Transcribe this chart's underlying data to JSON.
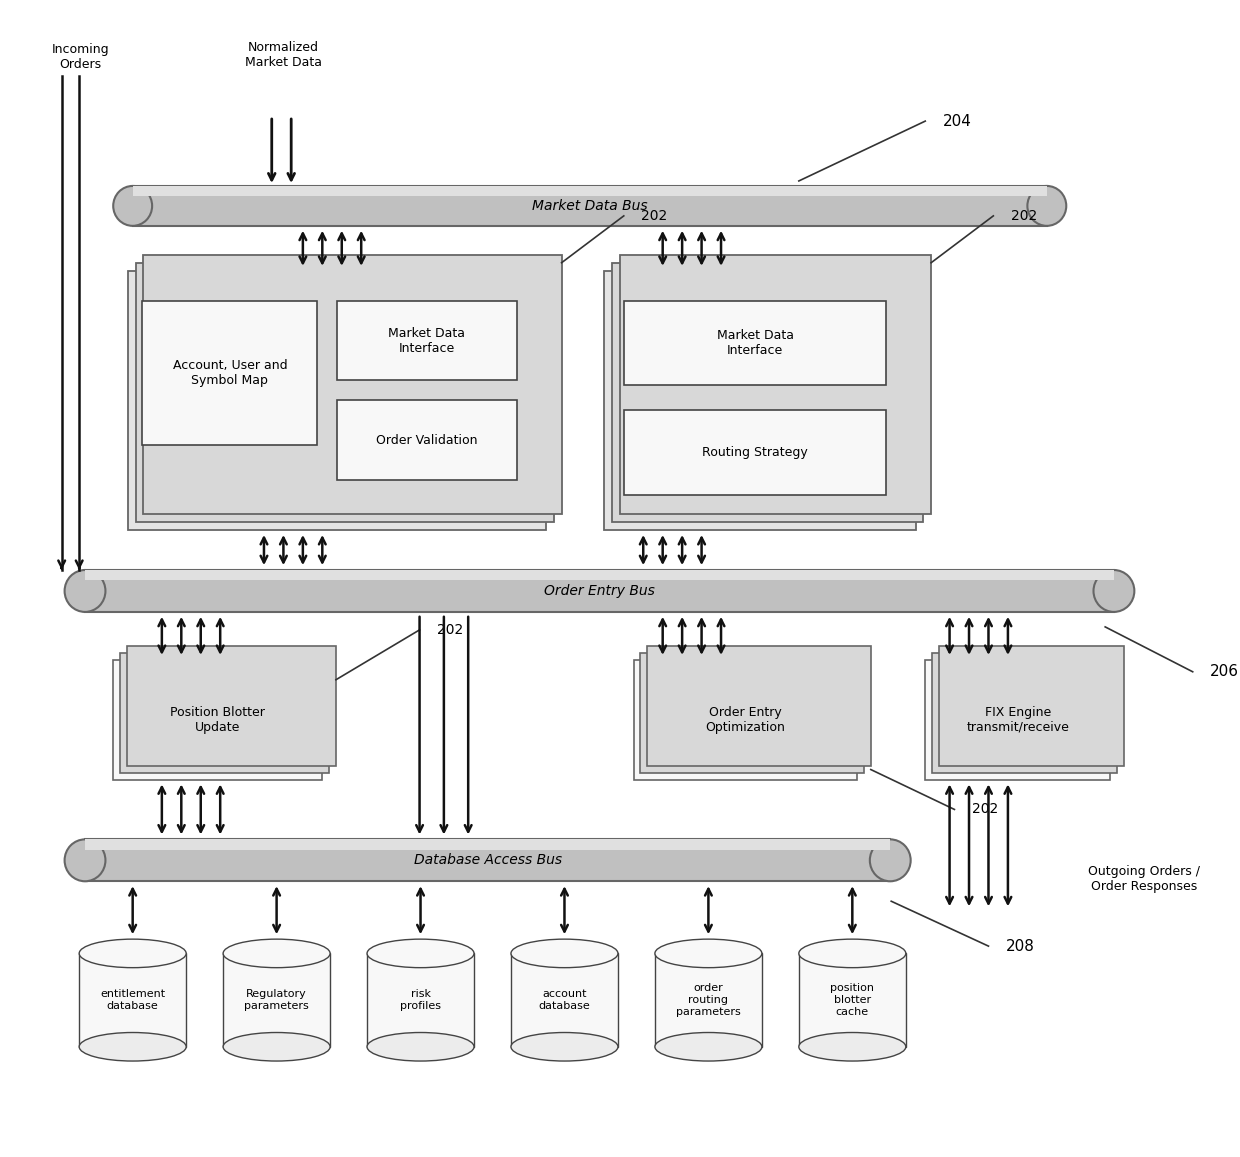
{
  "fig_width": 12.4,
  "fig_height": 11.57,
  "bg_color": "#ffffff",
  "bus_color": "#c0c0c0",
  "bus_edge_color": "#666666",
  "box_fill_outer": "#d8d8d8",
  "box_fill_inner_group": "#e4e4e4",
  "box_fill_white": "#f8f8f8",
  "box_edge_dark": "#444444",
  "box_edge_med": "#666666",
  "arrow_color": "#111111",
  "text_color": "#000000",
  "label_204": "204",
  "label_202a": "202",
  "label_202b": "202",
  "label_202c": "202",
  "label_202d": "202",
  "label_206": "206",
  "label_208": "208",
  "bus_market_data": "Market Data Bus",
  "bus_order_entry": "Order Entry Bus",
  "bus_database": "Database Access Bus",
  "box_account": "Account, User and\nSymbol Map",
  "box_market_data_iface1": "Market Data\nInterface",
  "box_order_validation": "Order Validation",
  "box_market_data_iface2": "Market Data\nInterface",
  "box_routing_strategy": "Routing Strategy",
  "box_position_blotter": "Position Blotter\nUpdate",
  "box_order_entry_opt": "Order Entry\nOptimization",
  "box_fix_engine": "FIX Engine\ntransmit/receive",
  "label_incoming": "Incoming\nOrders",
  "label_normalized": "Normalized\nMarket Data",
  "label_outgoing": "Outgoing Orders /\nOrder Responses",
  "db_entitlement": "entitlement\ndatabase",
  "db_regulatory": "Regulatory\nparameters",
  "db_risk": "risk\nprofiles",
  "db_account": "account\ndatabase",
  "db_order_routing": "order\nrouting\nparameters",
  "db_position": "position\nblotter\ncache"
}
